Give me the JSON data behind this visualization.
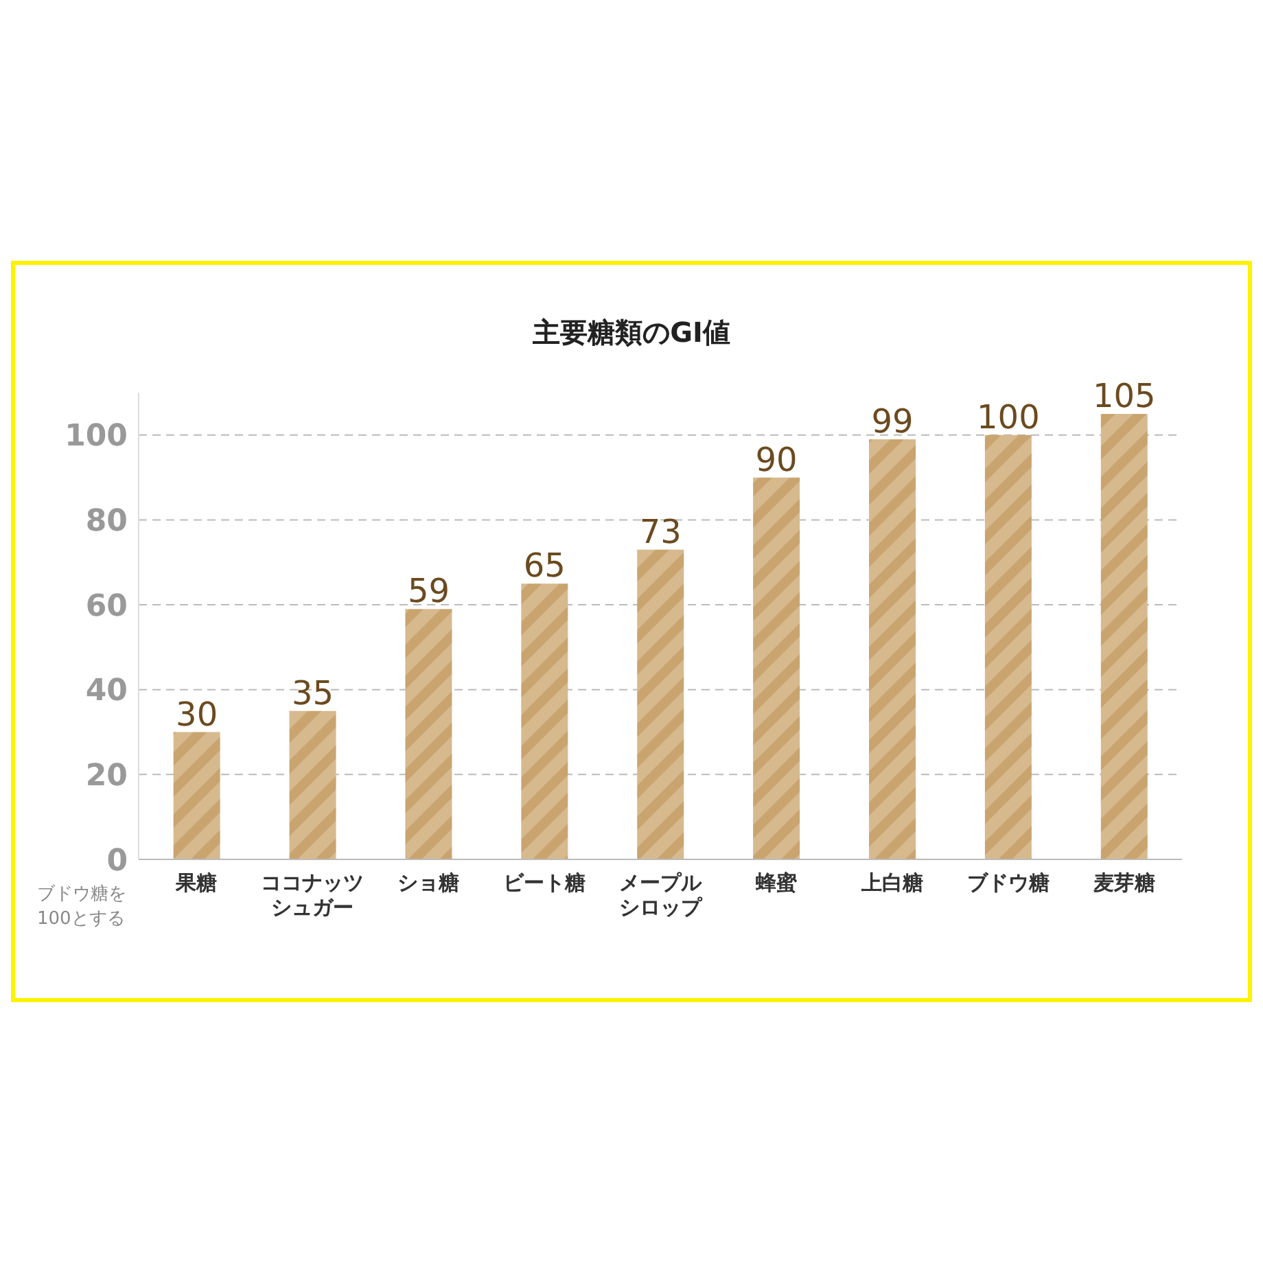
{
  "chart_data": {
    "type": "bar",
    "title": "主要糖類のGI値",
    "categories": [
      "果糖",
      "ココナッツシュガー",
      "ショ糖",
      "ビート糖",
      "メープルシロップ",
      "蜂蜜",
      "上白糖",
      "ブドウ糖",
      "麦芽糖"
    ],
    "values": [
      30,
      35,
      59,
      65,
      73,
      90,
      99,
      100,
      105
    ],
    "color": "#d7b98e",
    "ylim": [
      0,
      110
    ],
    "yticks": [
      0,
      20,
      40,
      60,
      80,
      100
    ],
    "grid": "y",
    "data_labels": true,
    "annotations": [
      "ブドウ糖を100とする"
    ]
  }
}
